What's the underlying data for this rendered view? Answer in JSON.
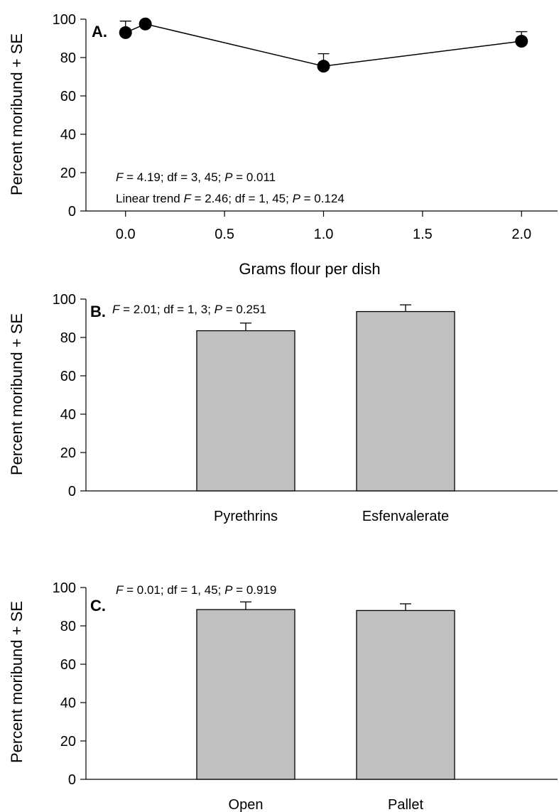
{
  "chart_data": [
    {
      "panel": "A.",
      "type": "line",
      "xlabel": "Grams flour per dish",
      "ylabel": "Percent moribund + SE",
      "xlim": [
        -0.2,
        2.2
      ],
      "ylim": [
        0,
        100
      ],
      "xticks": [
        "0.0",
        "0.5",
        "1.0",
        "1.5",
        "2.0"
      ],
      "yticks": [
        "0",
        "20",
        "40",
        "60",
        "80",
        "100"
      ],
      "x": [
        0.0,
        0.1,
        1.0,
        2.0
      ],
      "y": [
        93,
        97.5,
        75.5,
        88.5
      ],
      "se": [
        6,
        0,
        6.5,
        5
      ],
      "annotations": [
        {
          "F": "4.19",
          "rest": " = 4.19; df = 3, 45; ",
          "Pval": " = 0.011"
        },
        {
          "prefix": "Linear trend ",
          "rest": " = 2.46; df = 1, 45; ",
          "Pval": " = 0.124"
        }
      ]
    },
    {
      "panel": "B.",
      "type": "bar",
      "ylabel": "Percent moribund + SE",
      "ylim": [
        0,
        100
      ],
      "yticks": [
        "0",
        "20",
        "40",
        "60",
        "80",
        "100"
      ],
      "categories": [
        "Pyrethrins",
        "Esfenvalerate"
      ],
      "values": [
        83.5,
        93.5
      ],
      "se": [
        4,
        3.5
      ],
      "annotation": {
        "rest": " = 2.01; df = 1, 3; ",
        "Pval": " = 0.251"
      }
    },
    {
      "panel": "C.",
      "type": "bar",
      "ylabel": "Percent moribund + SE",
      "ylim": [
        0,
        100
      ],
      "yticks": [
        "0",
        "20",
        "40",
        "60",
        "80",
        "100"
      ],
      "categories": [
        "Open",
        "Pallet"
      ],
      "values": [
        88.5,
        88
      ],
      "se": [
        4,
        3.5
      ],
      "annotation": {
        "rest": " = 0.01; df = 1, 45; ",
        "Pval": " = 0.919"
      }
    }
  ],
  "style": {
    "bar_fill": "#c0c0c0",
    "line_color": "#000000"
  },
  "labels": {
    "F": "F",
    "P": "P"
  }
}
